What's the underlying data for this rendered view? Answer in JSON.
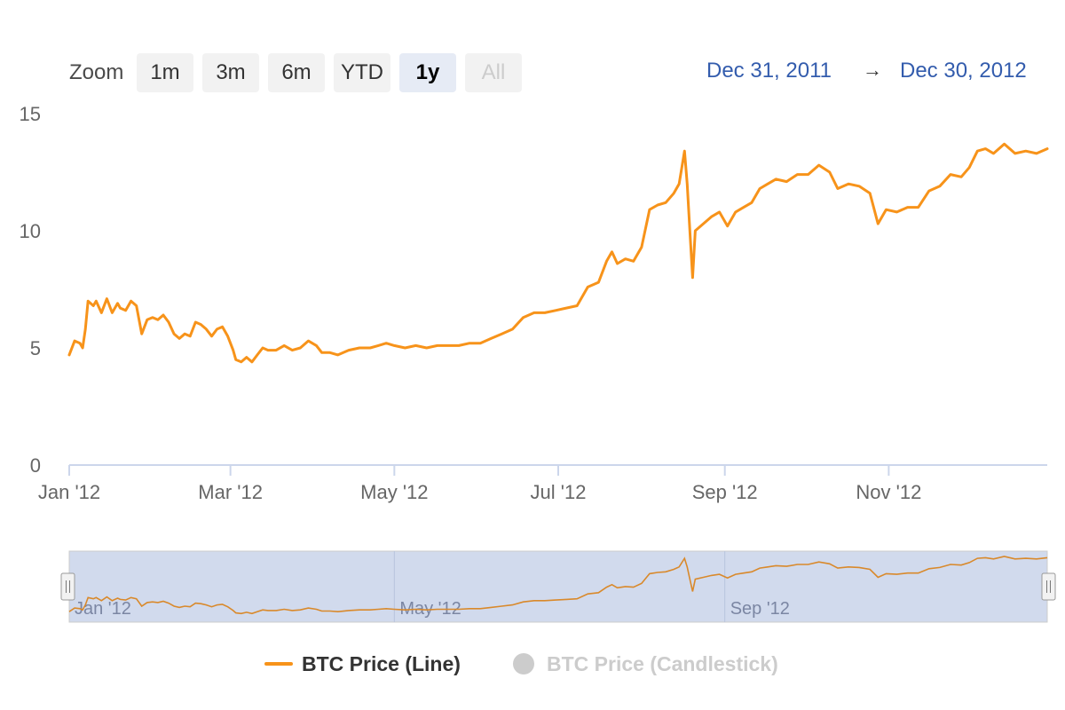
{
  "zoom": {
    "label": "Zoom",
    "buttons": [
      {
        "label": "1m",
        "state": "normal"
      },
      {
        "label": "3m",
        "state": "normal"
      },
      {
        "label": "6m",
        "state": "normal"
      },
      {
        "label": "YTD",
        "state": "normal"
      },
      {
        "label": "1y",
        "state": "active"
      },
      {
        "label": "All",
        "state": "disabled"
      }
    ]
  },
  "range": {
    "from": "Dec 31, 2011",
    "arrow": "→",
    "to": "Dec 30, 2012"
  },
  "legend": [
    {
      "label": "BTC Price (Line)",
      "color": "#f7931a",
      "visible": true
    },
    {
      "label": "BTC Price (Candlestick)",
      "color": "#cccccc",
      "visible": false
    }
  ],
  "navigator": {
    "tick_labels": [
      "Jan '12",
      "May '12",
      "Sep '12"
    ]
  },
  "chart_data": {
    "type": "line",
    "title": "",
    "xlabel": "",
    "ylabel": "",
    "ylim": [
      0,
      15
    ],
    "yticks": [
      0,
      5,
      10,
      15
    ],
    "xlim": [
      "2012-01-01",
      "2012-12-30"
    ],
    "xticks": [
      {
        "date": "2012-01-01",
        "label": "Jan '12"
      },
      {
        "date": "2012-03-01",
        "label": "Mar '12"
      },
      {
        "date": "2012-05-01",
        "label": "May '12"
      },
      {
        "date": "2012-07-01",
        "label": "Jul '12"
      },
      {
        "date": "2012-09-01",
        "label": "Sep '12"
      },
      {
        "date": "2012-11-01",
        "label": "Nov '12"
      }
    ],
    "series": [
      {
        "name": "BTC Price (Line)",
        "color": "#f7931a",
        "points": [
          [
            "2012-01-01",
            4.7
          ],
          [
            "2012-01-03",
            5.3
          ],
          [
            "2012-01-05",
            5.2
          ],
          [
            "2012-01-06",
            5.0
          ],
          [
            "2012-01-07",
            5.8
          ],
          [
            "2012-01-08",
            7.0
          ],
          [
            "2012-01-10",
            6.8
          ],
          [
            "2012-01-11",
            7.0
          ],
          [
            "2012-01-13",
            6.5
          ],
          [
            "2012-01-15",
            7.1
          ],
          [
            "2012-01-17",
            6.5
          ],
          [
            "2012-01-19",
            6.9
          ],
          [
            "2012-01-20",
            6.7
          ],
          [
            "2012-01-22",
            6.6
          ],
          [
            "2012-01-24",
            7.0
          ],
          [
            "2012-01-26",
            6.8
          ],
          [
            "2012-01-28",
            5.6
          ],
          [
            "2012-01-30",
            6.2
          ],
          [
            "2012-02-01",
            6.3
          ],
          [
            "2012-02-03",
            6.2
          ],
          [
            "2012-02-05",
            6.4
          ],
          [
            "2012-02-07",
            6.1
          ],
          [
            "2012-02-09",
            5.6
          ],
          [
            "2012-02-11",
            5.4
          ],
          [
            "2012-02-13",
            5.6
          ],
          [
            "2012-02-15",
            5.5
          ],
          [
            "2012-02-17",
            6.1
          ],
          [
            "2012-02-19",
            6.0
          ],
          [
            "2012-02-21",
            5.8
          ],
          [
            "2012-02-23",
            5.5
          ],
          [
            "2012-02-25",
            5.8
          ],
          [
            "2012-02-27",
            5.9
          ],
          [
            "2012-02-29",
            5.5
          ],
          [
            "2012-03-02",
            4.9
          ],
          [
            "2012-03-03",
            4.5
          ],
          [
            "2012-03-05",
            4.4
          ],
          [
            "2012-03-07",
            4.6
          ],
          [
            "2012-03-09",
            4.4
          ],
          [
            "2012-03-11",
            4.7
          ],
          [
            "2012-03-13",
            5.0
          ],
          [
            "2012-03-15",
            4.9
          ],
          [
            "2012-03-18",
            4.9
          ],
          [
            "2012-03-21",
            5.1
          ],
          [
            "2012-03-24",
            4.9
          ],
          [
            "2012-03-27",
            5.0
          ],
          [
            "2012-03-30",
            5.3
          ],
          [
            "2012-04-02",
            5.1
          ],
          [
            "2012-04-04",
            4.8
          ],
          [
            "2012-04-07",
            4.8
          ],
          [
            "2012-04-10",
            4.7
          ],
          [
            "2012-04-14",
            4.9
          ],
          [
            "2012-04-18",
            5.0
          ],
          [
            "2012-04-22",
            5.0
          ],
          [
            "2012-04-25",
            5.1
          ],
          [
            "2012-04-28",
            5.2
          ],
          [
            "2012-05-01",
            5.1
          ],
          [
            "2012-05-05",
            5.0
          ],
          [
            "2012-05-09",
            5.1
          ],
          [
            "2012-05-13",
            5.0
          ],
          [
            "2012-05-17",
            5.1
          ],
          [
            "2012-05-21",
            5.1
          ],
          [
            "2012-05-25",
            5.1
          ],
          [
            "2012-05-29",
            5.2
          ],
          [
            "2012-06-02",
            5.2
          ],
          [
            "2012-06-06",
            5.4
          ],
          [
            "2012-06-10",
            5.6
          ],
          [
            "2012-06-14",
            5.8
          ],
          [
            "2012-06-18",
            6.3
          ],
          [
            "2012-06-22",
            6.5
          ],
          [
            "2012-06-26",
            6.5
          ],
          [
            "2012-06-30",
            6.6
          ],
          [
            "2012-07-04",
            6.7
          ],
          [
            "2012-07-08",
            6.8
          ],
          [
            "2012-07-12",
            7.6
          ],
          [
            "2012-07-16",
            7.8
          ],
          [
            "2012-07-19",
            8.7
          ],
          [
            "2012-07-21",
            9.1
          ],
          [
            "2012-07-23",
            8.6
          ],
          [
            "2012-07-26",
            8.8
          ],
          [
            "2012-07-29",
            8.7
          ],
          [
            "2012-08-01",
            9.3
          ],
          [
            "2012-08-04",
            10.9
          ],
          [
            "2012-08-07",
            11.1
          ],
          [
            "2012-08-10",
            11.2
          ],
          [
            "2012-08-13",
            11.6
          ],
          [
            "2012-08-15",
            12.0
          ],
          [
            "2012-08-17",
            13.4
          ],
          [
            "2012-08-18",
            12.0
          ],
          [
            "2012-08-19",
            10.0
          ],
          [
            "2012-08-20",
            8.0
          ],
          [
            "2012-08-21",
            10.0
          ],
          [
            "2012-08-24",
            10.3
          ],
          [
            "2012-08-27",
            10.6
          ],
          [
            "2012-08-30",
            10.8
          ],
          [
            "2012-09-02",
            10.2
          ],
          [
            "2012-09-05",
            10.8
          ],
          [
            "2012-09-08",
            11.0
          ],
          [
            "2012-09-11",
            11.2
          ],
          [
            "2012-09-14",
            11.8
          ],
          [
            "2012-09-17",
            12.0
          ],
          [
            "2012-09-20",
            12.2
          ],
          [
            "2012-09-24",
            12.1
          ],
          [
            "2012-09-28",
            12.4
          ],
          [
            "2012-10-02",
            12.4
          ],
          [
            "2012-10-06",
            12.8
          ],
          [
            "2012-10-10",
            12.5
          ],
          [
            "2012-10-13",
            11.8
          ],
          [
            "2012-10-17",
            12.0
          ],
          [
            "2012-10-21",
            11.9
          ],
          [
            "2012-10-25",
            11.6
          ],
          [
            "2012-10-28",
            10.3
          ],
          [
            "2012-10-31",
            10.9
          ],
          [
            "2012-11-04",
            10.8
          ],
          [
            "2012-11-08",
            11.0
          ],
          [
            "2012-11-12",
            11.0
          ],
          [
            "2012-11-16",
            11.7
          ],
          [
            "2012-11-20",
            11.9
          ],
          [
            "2012-11-24",
            12.4
          ],
          [
            "2012-11-28",
            12.3
          ],
          [
            "2012-12-01",
            12.7
          ],
          [
            "2012-12-04",
            13.4
          ],
          [
            "2012-12-07",
            13.5
          ],
          [
            "2012-12-10",
            13.3
          ],
          [
            "2012-12-14",
            13.7
          ],
          [
            "2012-12-18",
            13.3
          ],
          [
            "2012-12-22",
            13.4
          ],
          [
            "2012-12-26",
            13.3
          ],
          [
            "2012-12-30",
            13.5
          ]
        ]
      }
    ],
    "grid": false,
    "legend_position": "bottom"
  }
}
